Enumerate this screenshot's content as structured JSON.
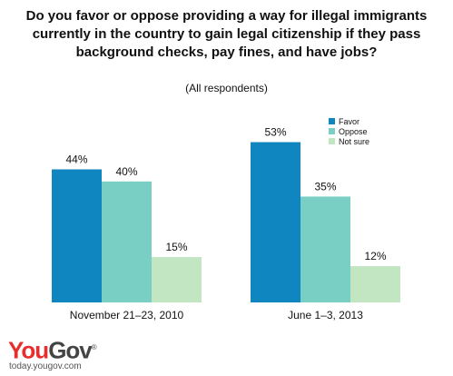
{
  "chart_data": {
    "type": "bar",
    "title": "Do you favor or oppose providing a way for illegal immigrants currently in the country to gain legal citizenship if they pass background checks, pay fines, and have jobs?",
    "subtitle": "(All respondents)",
    "categories": [
      "November 21–23, 2010",
      "June 1–3, 2013"
    ],
    "series": [
      {
        "name": "Favor",
        "values": [
          44,
          53
        ],
        "color": "#0f86c0"
      },
      {
        "name": "Oppose",
        "values": [
          40,
          35
        ],
        "color": "#79cfc4"
      },
      {
        "name": "Not sure",
        "values": [
          15,
          12
        ],
        "color": "#c3e6c2"
      }
    ],
    "value_suffix": "%",
    "ylim": [
      0,
      60
    ],
    "grid": false,
    "legend_position": "top-right"
  },
  "branding": {
    "logo_you": "You",
    "logo_gov": "Gov",
    "logo_mark": "®",
    "url": "today.yougov.com"
  }
}
